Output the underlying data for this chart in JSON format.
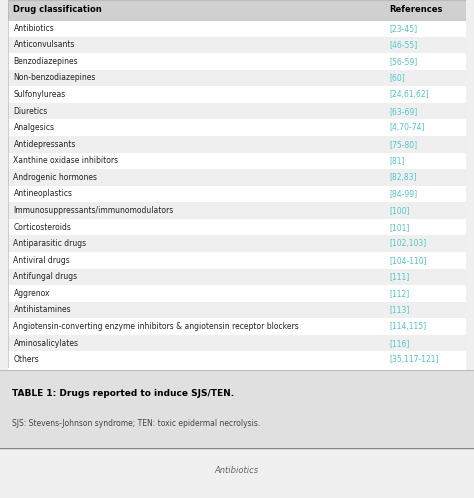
{
  "rows": [
    [
      "Antibiotics",
      "[23-45]"
    ],
    [
      "Anticonvulsants",
      "[46-55]"
    ],
    [
      "Benzodiazepines",
      "[56-59]"
    ],
    [
      "Non-benzodiazepines",
      "[60]"
    ],
    [
      "Sulfonylureas",
      "[24,61,62]"
    ],
    [
      "Diuretics",
      "[63-69]"
    ],
    [
      "Analgesics",
      "[4,70-74]"
    ],
    [
      "Antidepressants",
      "[75-80]"
    ],
    [
      "Xanthine oxidase inhibitors",
      "[81]"
    ],
    [
      "Androgenic hormones",
      "[82,83]"
    ],
    [
      "Antineoplastics",
      "[84-99]"
    ],
    [
      "Immunosuppressants/immunomodulators",
      "[100]"
    ],
    [
      "Corticosteroids",
      "[101]"
    ],
    [
      "Antiparasitic drugs",
      "[102,103]"
    ],
    [
      "Antiviral drugs",
      "[104-110]"
    ],
    [
      "Antifungal drugs",
      "[111]"
    ],
    [
      "Aggrenox",
      "[112]"
    ],
    [
      "Antihistamines",
      "[113]"
    ],
    [
      "Angiotensin-converting enzyme inhibitors & angiotensin receptor blockers",
      "[114,115]"
    ],
    [
      "Aminosalicylates",
      "[116]"
    ],
    [
      "Others",
      "[35,117-121]"
    ]
  ],
  "header": [
    "Drug classification",
    "References"
  ],
  "header_bg": "#d0d0d0",
  "row_bg_odd": "#ffffff",
  "row_bg_even": "#efefef",
  "ref_color": "#4ec9c9",
  "header_text_color": "#000000",
  "row_text_color": "#222222",
  "border_color": "#bbbbbb",
  "caption_bold": "TABLE 1: Drugs reported to induce SJS/TEN.",
  "caption_normal": "SJS: Stevens-Johnson syndrome; TEN: toxic epidermal necrolysis.",
  "caption_bg": "#e0e0e0",
  "footer_text": "Antibiotics",
  "footer_bg": "#f0f0f0",
  "table_bg": "#ffffff",
  "figwidth": 4.74,
  "figheight": 4.98,
  "dpi": 100
}
